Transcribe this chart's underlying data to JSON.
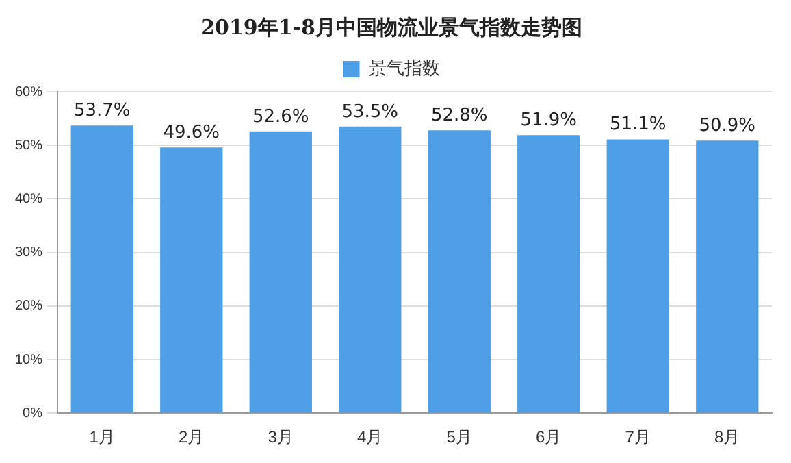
{
  "chart_data": {
    "type": "bar",
    "title": "2019年1-8月中国物流业景气指数走势图",
    "categories": [
      "1月",
      "2月",
      "3月",
      "4月",
      "5月",
      "6月",
      "7月",
      "8月"
    ],
    "series": [
      {
        "name": "景气指数",
        "color": "#4f9fe6",
        "values": [
          53.7,
          49.6,
          52.6,
          53.5,
          52.8,
          51.9,
          51.1,
          50.9
        ],
        "value_labels": [
          "53.7%",
          "49.6%",
          "52.6%",
          "53.5%",
          "52.8%",
          "51.9%",
          "51.1%",
          "50.9%"
        ]
      }
    ],
    "ylim": [
      0,
      60
    ],
    "yticks": [
      {
        "value": 0,
        "label": "0%"
      },
      {
        "value": 10,
        "label": "10%"
      },
      {
        "value": 20,
        "label": "20%"
      },
      {
        "value": 30,
        "label": "30%"
      },
      {
        "value": 40,
        "label": "40%"
      },
      {
        "value": 50,
        "label": "50%"
      },
      {
        "value": 60,
        "label": "60%"
      }
    ],
    "grid": "y",
    "legend": "top"
  }
}
